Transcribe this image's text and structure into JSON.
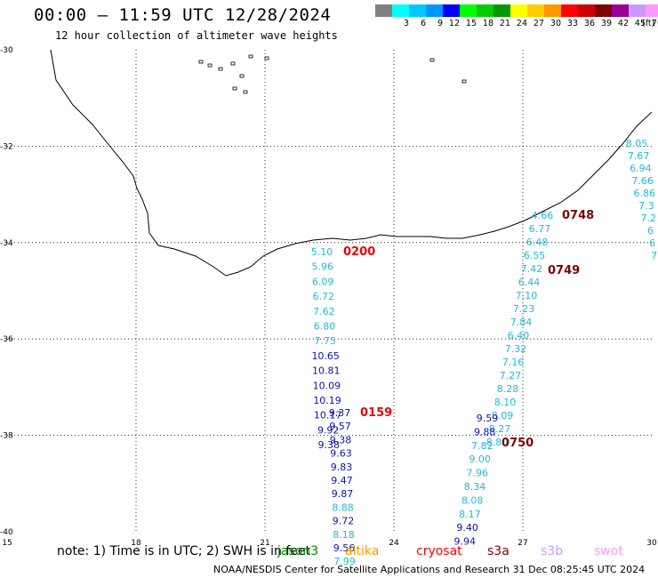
{
  "title": "00:00 — 11:59 UTC 12/28/2024",
  "subtitle": "12 hour collection of altimeter wave heights",
  "legend": {
    "unit": "(ft)",
    "swatches": [
      {
        "color": "#808080",
        "label": ""
      },
      {
        "color": "#00ffff",
        "label": "3"
      },
      {
        "color": "#00c8ff",
        "label": "6"
      },
      {
        "color": "#0096ff",
        "label": "9"
      },
      {
        "color": "#0000ff",
        "label": "12"
      },
      {
        "color": "#00ff00",
        "label": "15"
      },
      {
        "color": "#00cc00",
        "label": "18"
      },
      {
        "color": "#009900",
        "label": "21"
      },
      {
        "color": "#ffff00",
        "label": "24"
      },
      {
        "color": "#ffcc00",
        "label": "27"
      },
      {
        "color": "#ff9900",
        "label": "30"
      },
      {
        "color": "#ff0000",
        "label": "33"
      },
      {
        "color": "#cc0000",
        "label": "36"
      },
      {
        "color": "#800000",
        "label": "39"
      },
      {
        "color": "#990099",
        "label": "42"
      },
      {
        "color": "#cc99ff",
        "label": "45"
      },
      {
        "color": "#ff99ff",
        "label": "70"
      },
      {
        "color": "#000000",
        "label": ""
      }
    ]
  },
  "axes": {
    "x_ticks": [
      {
        "label": "15",
        "lon": 15
      },
      {
        "label": "18",
        "lon": 18
      },
      {
        "label": "21",
        "lon": 21
      },
      {
        "label": "24",
        "lon": 24
      },
      {
        "label": "27",
        "lon": 27
      },
      {
        "label": "30",
        "lon": 30
      }
    ],
    "y_ticks": [
      {
        "label": "-30",
        "lat": -30
      },
      {
        "label": "-32",
        "lat": -32
      },
      {
        "label": "-34",
        "lat": -34
      },
      {
        "label": "-36",
        "lat": -36
      },
      {
        "label": "-38",
        "lat": -38
      },
      {
        "label": "-40",
        "lat": -40
      }
    ]
  },
  "colors": {
    "cyan": "#22b8dd",
    "blue": "#1010b0",
    "tag_red": "#ee0000",
    "tag_dark": "#800000",
    "coast": "#000000",
    "grid": "#000000"
  },
  "tracks": [
    {
      "time_tag": "0200",
      "tag_color": "tag_red",
      "points": [
        [
          "5.10",
          "cyan"
        ],
        [
          "5.96",
          "cyan"
        ],
        [
          "6.09",
          "cyan"
        ],
        [
          "6.72",
          "cyan"
        ],
        [
          "7.62",
          "cyan"
        ],
        [
          "6.80",
          "cyan"
        ],
        [
          "7.75",
          "cyan"
        ],
        [
          "10.65",
          "blue"
        ],
        [
          "10.81",
          "blue"
        ],
        [
          "10.09",
          "blue"
        ],
        [
          "10.19",
          "blue"
        ],
        [
          "10.17",
          "blue"
        ],
        [
          "9.92",
          "blue"
        ],
        [
          "9.38",
          "blue"
        ]
      ]
    },
    {
      "time_tag": "0159",
      "tag_color": "tag_red",
      "points": [
        [
          "9.37",
          "blue"
        ],
        [
          "9.57",
          "blue"
        ],
        [
          "9.38",
          "blue"
        ],
        [
          "9.63",
          "blue"
        ],
        [
          "9.83",
          "blue"
        ],
        [
          "9.47",
          "blue"
        ],
        [
          "9.87",
          "blue"
        ],
        [
          "8.88",
          "cyan"
        ],
        [
          "9.72",
          "blue"
        ],
        [
          "8.18",
          "cyan"
        ],
        [
          "9.56",
          "blue"
        ],
        [
          "7.99",
          "cyan"
        ]
      ]
    },
    {
      "time_tag": "0748",
      "tag_color": "tag_dark",
      "points": [
        [
          "8.05",
          "cyan"
        ],
        [
          "7.67",
          "cyan"
        ],
        [
          "6.94",
          "cyan"
        ],
        [
          "7.66",
          "cyan"
        ],
        [
          "6.86",
          "cyan"
        ],
        [
          "7.3",
          "cyan"
        ],
        [
          "7.2",
          "cyan"
        ],
        [
          "6",
          "cyan"
        ],
        [
          "6",
          "cyan"
        ],
        [
          "7",
          "cyan"
        ]
      ]
    },
    {
      "time_tag": "0749",
      "tag_color": "tag_dark",
      "points": [
        [
          "4.66",
          "cyan"
        ],
        [
          "6.77",
          "cyan"
        ],
        [
          "6.48",
          "cyan"
        ],
        [
          "6.55",
          "cyan"
        ],
        [
          "7.42",
          "cyan"
        ],
        [
          "6.44",
          "cyan"
        ],
        [
          "7.10",
          "cyan"
        ],
        [
          "7.23",
          "cyan"
        ],
        [
          "7.84",
          "cyan"
        ],
        [
          "6.40",
          "cyan"
        ],
        [
          "7.32",
          "cyan"
        ],
        [
          "7.16",
          "cyan"
        ],
        [
          "7.27",
          "cyan"
        ],
        [
          "8.28",
          "cyan"
        ],
        [
          "8.10",
          "cyan"
        ],
        [
          "8.09",
          "cyan"
        ],
        [
          "8.27",
          "cyan"
        ],
        [
          "8.80",
          "cyan"
        ]
      ]
    },
    {
      "time_tag": "0750",
      "tag_color": "tag_dark",
      "points": [
        [
          "9.59",
          "blue"
        ],
        [
          "9.88",
          "blue"
        ],
        [
          "7.82",
          "cyan"
        ],
        [
          "9.00",
          "cyan"
        ],
        [
          "7.96",
          "cyan"
        ],
        [
          "8.34",
          "cyan"
        ],
        [
          "8.08",
          "cyan"
        ],
        [
          "8.17",
          "cyan"
        ],
        [
          "9.40",
          "blue"
        ],
        [
          "9.94",
          "blue"
        ]
      ]
    }
  ],
  "note": "note: 1) Time is in UTC; 2) SWH is in feet",
  "satellites": [
    {
      "name": "jason3",
      "color": "#008800"
    },
    {
      "name": "altika",
      "color": "#ff9900"
    },
    {
      "name": "cryosat",
      "color": "#ff0000"
    },
    {
      "name": "s3a",
      "color": "#800000"
    },
    {
      "name": "s3b",
      "color": "#cc99ff"
    },
    {
      "name": "swot",
      "color": "#ff99ff"
    }
  ],
  "credit": "NOAA/NESDIS Center for Satellite Applications and Research    31 Dec 08:25:45 UTC 2024"
}
